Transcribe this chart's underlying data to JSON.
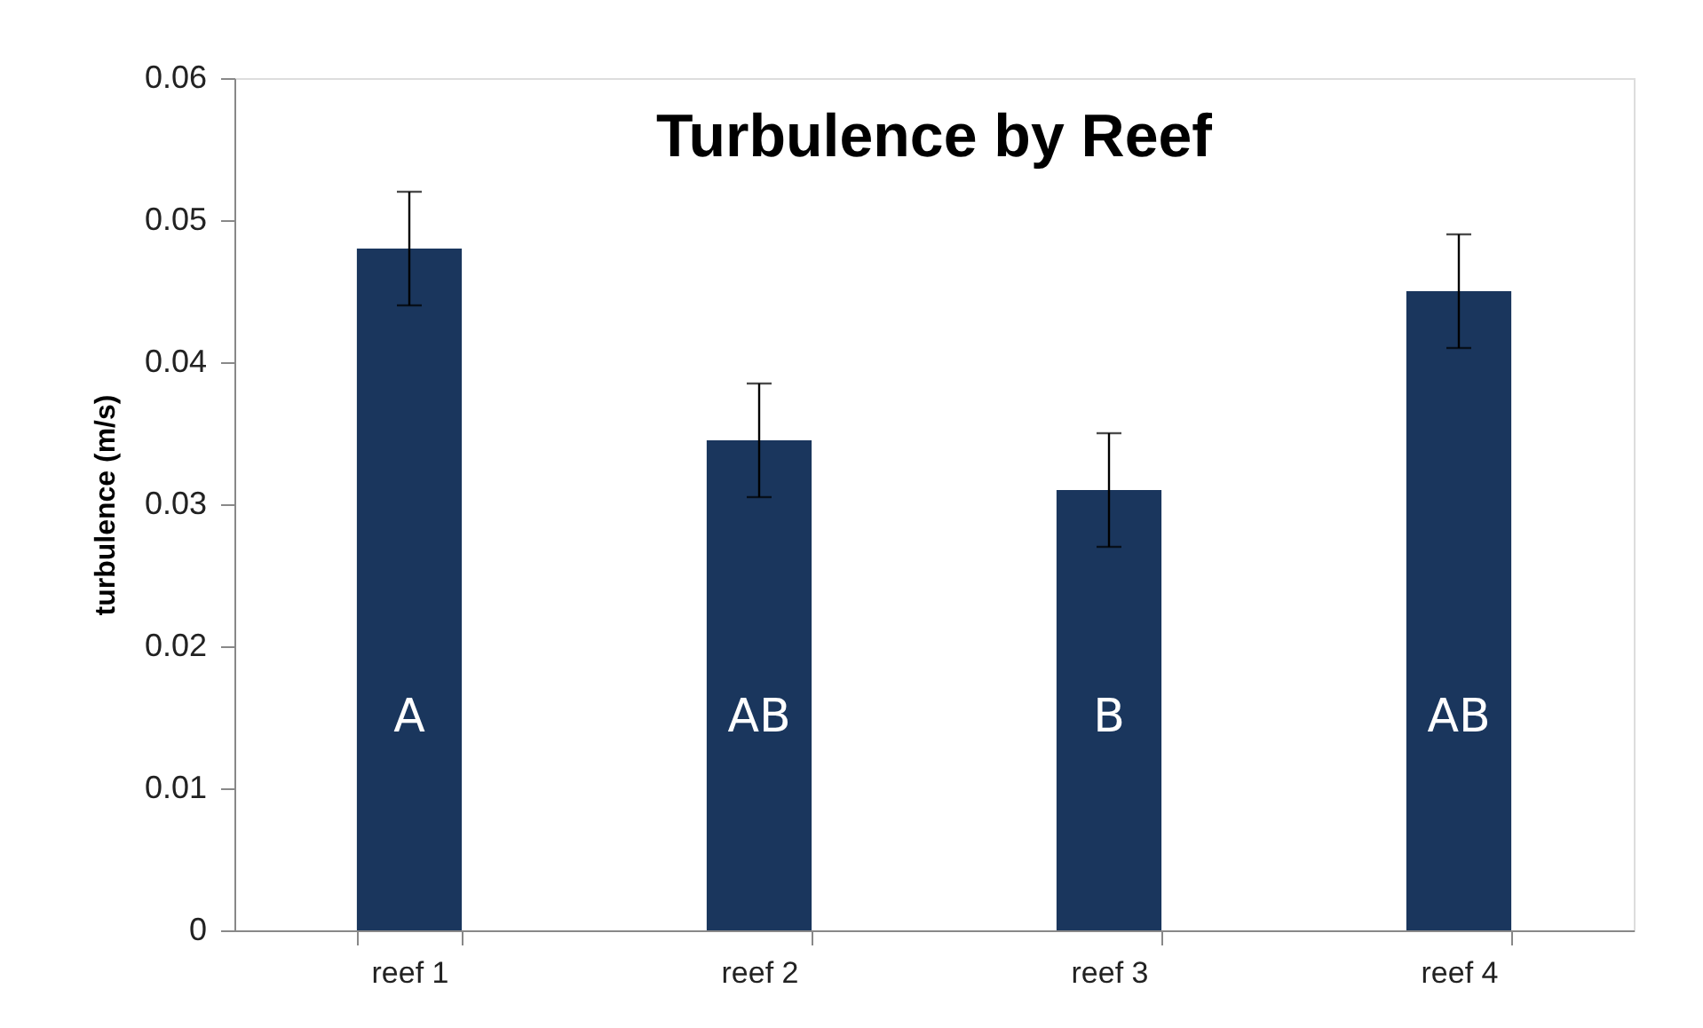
{
  "chart_data": {
    "type": "bar",
    "title": "Turbulence by Reef",
    "ylabel": "turbulence (m/s)",
    "categories": [
      "reef 1",
      "reef 2",
      "reef 3",
      "reef 4"
    ],
    "values": [
      0.048,
      0.0345,
      0.031,
      0.045
    ],
    "errors": [
      0.004,
      0.004,
      0.004,
      0.004
    ],
    "color": "#1a365d",
    "ylim": [
      0,
      0.06
    ],
    "yticks": [
      0,
      0.01,
      0.02,
      0.03,
      0.04,
      0.05,
      0.06
    ],
    "grid": false,
    "annotations": [
      "A",
      "AB",
      "B",
      "AB"
    ]
  }
}
